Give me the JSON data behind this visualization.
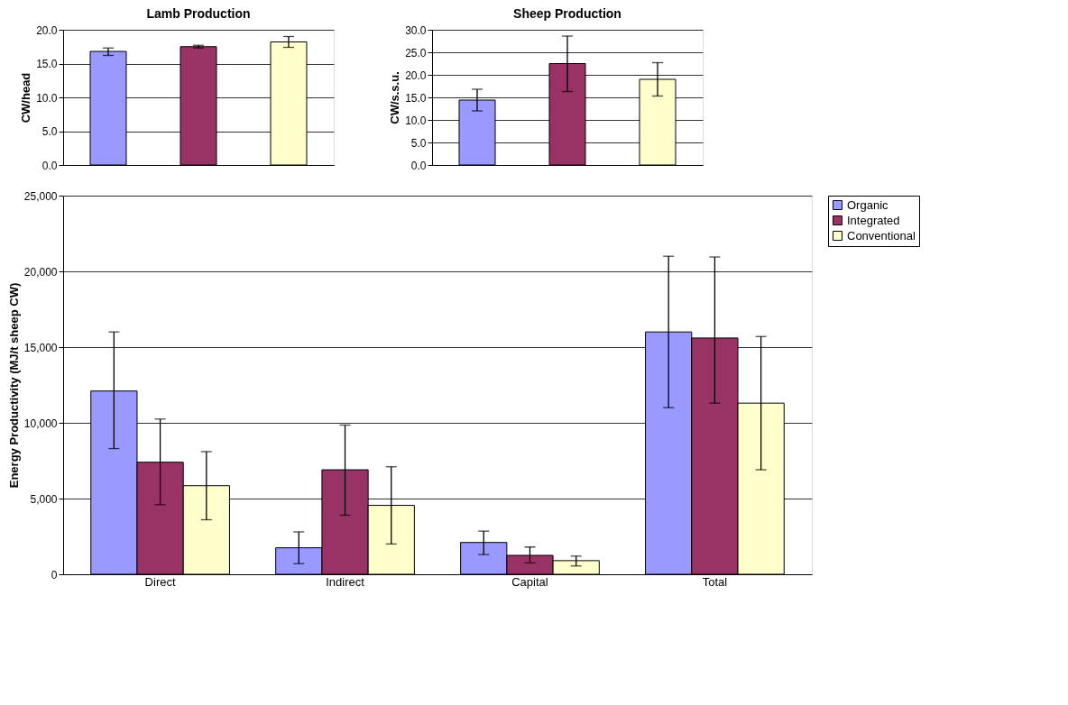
{
  "chart_data": [
    {
      "type": "bar",
      "title": "Lamb Production",
      "ylabel": "CW/head",
      "categories": [
        null,
        null,
        null
      ],
      "values": [
        16.8,
        17.5,
        18.2
      ],
      "colors": [
        "#9999ff",
        "#993366",
        "#ffffcc"
      ],
      "errors": [
        [
          16.2,
          17.3
        ],
        [
          17.3,
          17.7
        ],
        [
          17.4,
          19.0
        ]
      ],
      "ylim": [
        0,
        20
      ],
      "yticks": [
        {
          "value": 0,
          "label": "0.0"
        },
        {
          "value": 5,
          "label": "5.0"
        },
        {
          "value": 10,
          "label": "10.0"
        },
        {
          "value": 15,
          "label": "15.0"
        },
        {
          "value": 20,
          "label": "20.0"
        }
      ],
      "grid": "y",
      "tick_labels": "y"
    },
    {
      "type": "bar",
      "title": "Sheep Production",
      "ylabel": "CW/s.s.u.",
      "categories": [
        null,
        null,
        null
      ],
      "values": [
        14.4,
        22.5,
        19.0
      ],
      "colors": [
        "#9999ff",
        "#993366",
        "#ffffcc"
      ],
      "errors": [
        [
          12.0,
          16.8
        ],
        [
          16.3,
          28.6
        ],
        [
          15.3,
          22.7
        ]
      ],
      "ylim": [
        0,
        30
      ],
      "yticks": [
        {
          "value": 0,
          "label": "0.0"
        },
        {
          "value": 5,
          "label": "5.0"
        },
        {
          "value": 10,
          "label": "10.0"
        },
        {
          "value": 15,
          "label": "15.0"
        },
        {
          "value": 20,
          "label": "20.0"
        },
        {
          "value": 25,
          "label": "25.0"
        },
        {
          "value": 30,
          "label": "30.0"
        }
      ],
      "grid": "y",
      "tick_labels": "y"
    },
    {
      "type": "bar",
      "ylabel": "Energy Productivity (MJ/t sheep CW)",
      "categories": [
        "Direct",
        "Indirect",
        "Capital",
        "Total"
      ],
      "series": [
        {
          "name": "Organic",
          "color": "#9999ff",
          "values": [
            12100,
            1750,
            2100,
            16000
          ],
          "errors": [
            [
              8300,
              16000
            ],
            [
              700,
              2800
            ],
            [
              1300,
              2850
            ],
            [
              11000,
              21000
            ]
          ]
        },
        {
          "name": "Integrated",
          "color": "#993366",
          "values": [
            7400,
            6900,
            1250,
            15600
          ],
          "errors": [
            [
              4600,
              10250
            ],
            [
              3900,
              9850
            ],
            [
              750,
              1800
            ],
            [
              11300,
              20950
            ]
          ]
        },
        {
          "name": "Conventional",
          "color": "#ffffcc",
          "values": [
            5850,
            4550,
            900,
            11300
          ],
          "errors": [
            [
              3600,
              8100
            ],
            [
              2000,
              7100
            ],
            [
              550,
              1200
            ],
            [
              6900,
              15700
            ]
          ]
        }
      ],
      "ylim": [
        0,
        25000
      ],
      "yticks": [
        0,
        {
          "value": 5000,
          "label": "5,000"
        },
        {
          "value": 10000,
          "label": "10,000"
        },
        {
          "value": 15000,
          "label": "15,000"
        },
        {
          "value": 20000,
          "label": "20,000"
        },
        {
          "value": 25000,
          "label": "25,000"
        }
      ],
      "grid": "y",
      "legend": "right"
    }
  ]
}
